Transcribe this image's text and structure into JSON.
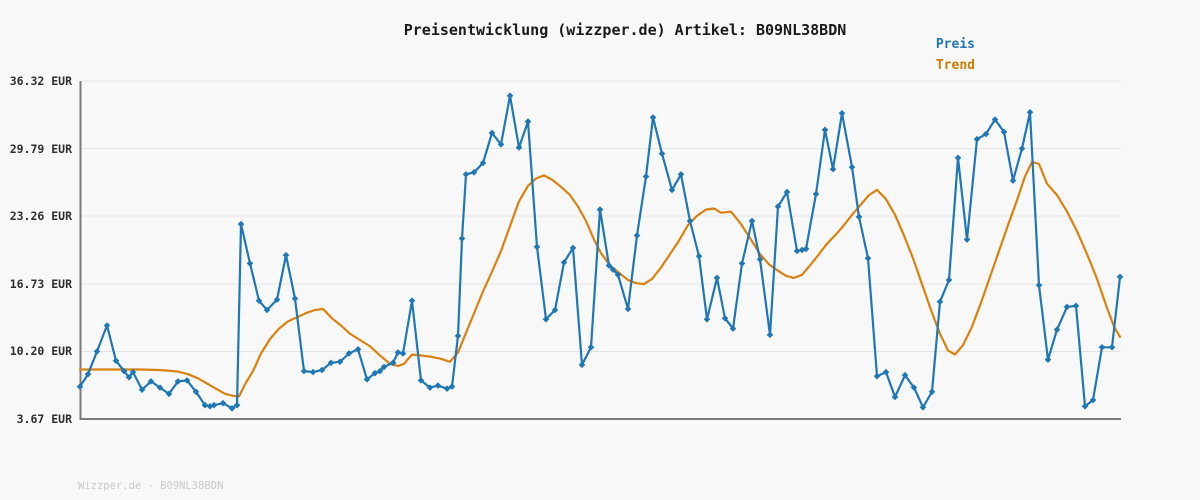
{
  "header": {
    "title": "Preisentwicklung (wizzper.de) Artikel: B09NL38BDN"
  },
  "legend": [
    {
      "label": "Preis",
      "color": "#1f77b4"
    },
    {
      "label": "Trend",
      "color": "#c87d06"
    }
  ],
  "footer": {
    "credit": "Wizzper.de - B09NL38BDN"
  },
  "colors": {
    "background": "#f8f8f8",
    "grid": "#e3e3e3",
    "axis": "#7a7a7a",
    "price_line": "#1f77b4",
    "trend_line": "#d9820f"
  },
  "chart_data": {
    "type": "line",
    "title": "Preisentwicklung (wizzper.de) Artikel: B09NL38BDN",
    "xlabel": "",
    "ylabel": "",
    "x_note": "no x-axis tick labels visible; x values are horizontal pixel positions in the plot (81-1121)",
    "grid": "horizontal",
    "legend_position": "top-right",
    "y_axis": {
      "unit": "EUR",
      "range": [
        3.67,
        36.32
      ],
      "ticks": [
        {
          "label": "36.32 EUR",
          "value": 36.32
        },
        {
          "label": "29.79 EUR",
          "value": 29.79
        },
        {
          "label": "23.26 EUR",
          "value": 23.26
        },
        {
          "label": "16.73 EUR",
          "value": 16.73
        },
        {
          "label": "10.20 EUR",
          "value": 10.2
        },
        {
          "label": "3.67 EUR",
          "value": 3.67
        }
      ]
    },
    "series": [
      {
        "name": "Preis",
        "color": "#1f77b4",
        "marker": "diamond",
        "points": [
          [
            79,
            6.8
          ],
          [
            88,
            8.0
          ],
          [
            97,
            10.2
          ],
          [
            107,
            12.7
          ],
          [
            116,
            9.3
          ],
          [
            124,
            8.3
          ],
          [
            129,
            7.7
          ],
          [
            133,
            8.2
          ],
          [
            142,
            6.5
          ],
          [
            151,
            7.3
          ],
          [
            160,
            6.7
          ],
          [
            169,
            6.1
          ],
          [
            178,
            7.3
          ],
          [
            187,
            7.4
          ],
          [
            196,
            6.3
          ],
          [
            205,
            5.0
          ],
          [
            210,
            4.9
          ],
          [
            214,
            5.0
          ],
          [
            223,
            5.2
          ],
          [
            232,
            4.7
          ],
          [
            237,
            5.0
          ],
          [
            241,
            22.5
          ],
          [
            250,
            18.7
          ],
          [
            259,
            15.1
          ],
          [
            267,
            14.2
          ],
          [
            277,
            15.2
          ],
          [
            286,
            19.5
          ],
          [
            295,
            15.3
          ],
          [
            304,
            8.3
          ],
          [
            313,
            8.2
          ],
          [
            322,
            8.4
          ],
          [
            331,
            9.1
          ],
          [
            340,
            9.2
          ],
          [
            349,
            10.0
          ],
          [
            358,
            10.4
          ],
          [
            367,
            7.5
          ],
          [
            375,
            8.1
          ],
          [
            380,
            8.3
          ],
          [
            384,
            8.7
          ],
          [
            393,
            9.1
          ],
          [
            398,
            10.1
          ],
          [
            403,
            10.0
          ],
          [
            412,
            15.1
          ],
          [
            421,
            7.4
          ],
          [
            430,
            6.7
          ],
          [
            438,
            6.9
          ],
          [
            447,
            6.6
          ],
          [
            452,
            6.8
          ],
          [
            458,
            11.7
          ],
          [
            462,
            21.1
          ],
          [
            466,
            27.3
          ],
          [
            474,
            27.5
          ],
          [
            483,
            28.4
          ],
          [
            492,
            31.3
          ],
          [
            501,
            30.2
          ],
          [
            510,
            34.9
          ],
          [
            519,
            29.9
          ],
          [
            528,
            32.4
          ],
          [
            537,
            20.3
          ],
          [
            546,
            13.3
          ],
          [
            555,
            14.2
          ],
          [
            564,
            18.8
          ],
          [
            573,
            20.2
          ],
          [
            582,
            8.9
          ],
          [
            591,
            10.6
          ],
          [
            600,
            23.9
          ],
          [
            609,
            18.5
          ],
          [
            613,
            18.1
          ],
          [
            618,
            17.6
          ],
          [
            628,
            14.3
          ],
          [
            637,
            21.4
          ],
          [
            646,
            27.1
          ],
          [
            653,
            32.8
          ],
          [
            662,
            29.3
          ],
          [
            672,
            25.8
          ],
          [
            681,
            27.3
          ],
          [
            690,
            22.8
          ],
          [
            699,
            19.4
          ],
          [
            707,
            13.3
          ],
          [
            717,
            17.3
          ],
          [
            725,
            13.4
          ],
          [
            733,
            12.4
          ],
          [
            742,
            18.7
          ],
          [
            752,
            22.8
          ],
          [
            760,
            19.1
          ],
          [
            770,
            11.8
          ],
          [
            778,
            24.2
          ],
          [
            787,
            25.6
          ],
          [
            797,
            19.9
          ],
          [
            802,
            20.0
          ],
          [
            806,
            20.1
          ],
          [
            816,
            25.4
          ],
          [
            825,
            31.6
          ],
          [
            833,
            27.8
          ],
          [
            842,
            33.2
          ],
          [
            852,
            28.0
          ],
          [
            859,
            23.2
          ],
          [
            868,
            19.2
          ],
          [
            877,
            7.8
          ],
          [
            886,
            8.2
          ],
          [
            895,
            5.8
          ],
          [
            905,
            7.9
          ],
          [
            914,
            6.7
          ],
          [
            923,
            4.8
          ],
          [
            932,
            6.3
          ],
          [
            940,
            15.0
          ],
          [
            949,
            17.1
          ],
          [
            958,
            28.9
          ],
          [
            967,
            21.0
          ],
          [
            977,
            30.7
          ],
          [
            986,
            31.2
          ],
          [
            995,
            32.6
          ],
          [
            1004,
            31.4
          ],
          [
            1013,
            26.7
          ],
          [
            1022,
            29.8
          ],
          [
            1030,
            33.3
          ],
          [
            1039,
            16.6
          ],
          [
            1048,
            9.4
          ],
          [
            1057,
            12.3
          ],
          [
            1067,
            14.5
          ],
          [
            1076,
            14.6
          ],
          [
            1085,
            4.9
          ],
          [
            1093,
            5.5
          ],
          [
            1102,
            10.6
          ],
          [
            1112,
            10.6
          ],
          [
            1120,
            17.4
          ]
        ]
      },
      {
        "name": "Trend",
        "color": "#d9820f",
        "marker": "none",
        "points": [
          [
            79,
            8.45
          ],
          [
            110,
            8.45
          ],
          [
            140,
            8.45
          ],
          [
            158,
            8.4
          ],
          [
            168,
            8.35
          ],
          [
            178,
            8.25
          ],
          [
            188,
            8.0
          ],
          [
            198,
            7.6
          ],
          [
            207,
            7.1
          ],
          [
            216,
            6.6
          ],
          [
            225,
            6.1
          ],
          [
            233,
            5.9
          ],
          [
            239,
            5.85
          ],
          [
            246,
            7.2
          ],
          [
            253,
            8.3
          ],
          [
            261,
            10.0
          ],
          [
            270,
            11.4
          ],
          [
            279,
            12.4
          ],
          [
            288,
            13.1
          ],
          [
            297,
            13.5
          ],
          [
            306,
            13.9
          ],
          [
            315,
            14.2
          ],
          [
            323,
            14.3
          ],
          [
            332,
            13.4
          ],
          [
            341,
            12.7
          ],
          [
            350,
            11.9
          ],
          [
            360,
            11.3
          ],
          [
            370,
            10.7
          ],
          [
            380,
            9.8
          ],
          [
            390,
            9.0
          ],
          [
            398,
            8.8
          ],
          [
            404,
            9.0
          ],
          [
            412,
            9.9
          ],
          [
            421,
            9.8
          ],
          [
            430,
            9.7
          ],
          [
            440,
            9.5
          ],
          [
            450,
            9.2
          ],
          [
            458,
            10.1
          ],
          [
            466,
            12.0
          ],
          [
            475,
            14.1
          ],
          [
            483,
            16.0
          ],
          [
            492,
            17.9
          ],
          [
            501,
            19.9
          ],
          [
            510,
            22.3
          ],
          [
            519,
            24.7
          ],
          [
            528,
            26.2
          ],
          [
            536,
            26.9
          ],
          [
            544,
            27.2
          ],
          [
            552,
            26.8
          ],
          [
            561,
            26.1
          ],
          [
            570,
            25.3
          ],
          [
            578,
            24.2
          ],
          [
            586,
            22.8
          ],
          [
            594,
            21.0
          ],
          [
            601,
            19.7
          ],
          [
            610,
            18.5
          ],
          [
            619,
            17.8
          ],
          [
            628,
            17.1
          ],
          [
            636,
            16.8
          ],
          [
            644,
            16.7
          ],
          [
            652,
            17.2
          ],
          [
            661,
            18.3
          ],
          [
            670,
            19.6
          ],
          [
            679,
            20.9
          ],
          [
            688,
            22.4
          ],
          [
            697,
            23.3
          ],
          [
            706,
            23.9
          ],
          [
            714,
            24.0
          ],
          [
            721,
            23.6
          ],
          [
            731,
            23.7
          ],
          [
            741,
            22.5
          ],
          [
            751,
            21.0
          ],
          [
            760,
            19.6
          ],
          [
            769,
            18.6
          ],
          [
            778,
            18.0
          ],
          [
            786,
            17.5
          ],
          [
            794,
            17.3
          ],
          [
            802,
            17.6
          ],
          [
            810,
            18.5
          ],
          [
            819,
            19.6
          ],
          [
            827,
            20.6
          ],
          [
            836,
            21.5
          ],
          [
            844,
            22.4
          ],
          [
            852,
            23.4
          ],
          [
            861,
            24.4
          ],
          [
            869,
            25.3
          ],
          [
            877,
            25.8
          ],
          [
            886,
            24.9
          ],
          [
            895,
            23.4
          ],
          [
            904,
            21.4
          ],
          [
            913,
            19.2
          ],
          [
            922,
            16.7
          ],
          [
            931,
            14.2
          ],
          [
            940,
            11.9
          ],
          [
            948,
            10.3
          ],
          [
            955,
            9.9
          ],
          [
            963,
            10.8
          ],
          [
            972,
            12.6
          ],
          [
            981,
            14.9
          ],
          [
            990,
            17.4
          ],
          [
            999,
            19.9
          ],
          [
            1008,
            22.4
          ],
          [
            1017,
            24.8
          ],
          [
            1025,
            27.1
          ],
          [
            1032,
            28.5
          ],
          [
            1039,
            28.3
          ],
          [
            1047,
            26.4
          ],
          [
            1057,
            25.3
          ],
          [
            1067,
            23.7
          ],
          [
            1077,
            21.8
          ],
          [
            1087,
            19.6
          ],
          [
            1097,
            17.2
          ],
          [
            1107,
            14.4
          ],
          [
            1114,
            12.6
          ],
          [
            1120,
            11.6
          ]
        ]
      }
    ]
  }
}
